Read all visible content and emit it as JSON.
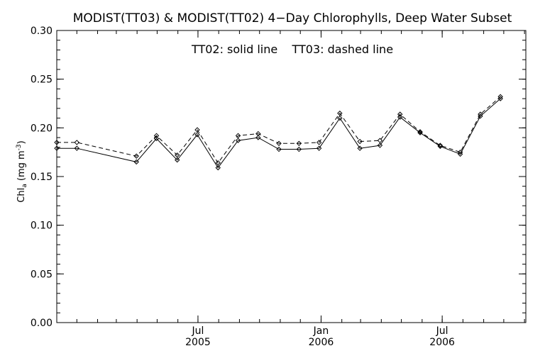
{
  "chart_data": {
    "type": "line",
    "title": "MODIST(TT03) & MODIST(TT02) 4−Day Chlorophylls, Deep Water Subset",
    "annotation": "TT02: solid line    TT03: dashed line",
    "ylabel": "Chl_a (mg m^-3)",
    "ylim": [
      0.0,
      0.3
    ],
    "y_ticks": [
      "0.00",
      "0.05",
      "0.10",
      "0.15",
      "0.20",
      "0.25",
      "0.30"
    ],
    "xlim": [
      "2004-12-02",
      "2006-11-03"
    ],
    "x_ticks_top": [
      "Jul",
      "Jan",
      "Jul"
    ],
    "x_ticks_bottom": [
      "2005",
      "2006",
      "2006"
    ],
    "x_tick_dates": [
      "2005-07-01",
      "2006-01-01",
      "2006-07-01"
    ],
    "grid": false,
    "x": [
      "2004-12-02",
      "2005-01-01",
      "2005-03-31",
      "2005-04-30",
      "2005-05-31",
      "2005-06-30",
      "2005-07-31",
      "2005-08-30",
      "2005-09-29",
      "2005-10-30",
      "2005-11-29",
      "2005-12-29",
      "2006-01-29",
      "2006-02-28",
      "2006-03-30",
      "2006-04-29",
      "2006-05-29",
      "2006-06-28",
      "2006-07-28",
      "2006-08-27",
      "2006-09-26"
    ],
    "series": [
      {
        "name": "TT02",
        "style": "solid",
        "color": "#000000",
        "values": [
          0.179,
          0.179,
          0.165,
          0.189,
          0.167,
          0.193,
          0.159,
          0.187,
          0.19,
          0.178,
          0.178,
          0.179,
          0.21,
          0.179,
          0.182,
          0.211,
          0.195,
          0.181,
          0.173,
          0.212,
          0.23
        ]
      },
      {
        "name": "TT03",
        "style": "dashed",
        "color": "#000000",
        "values": [
          0.185,
          0.185,
          0.171,
          0.192,
          0.172,
          0.198,
          0.164,
          0.192,
          0.194,
          0.184,
          0.184,
          0.185,
          0.215,
          0.186,
          0.187,
          0.214,
          0.196,
          0.182,
          0.175,
          0.214,
          0.232
        ]
      }
    ]
  }
}
